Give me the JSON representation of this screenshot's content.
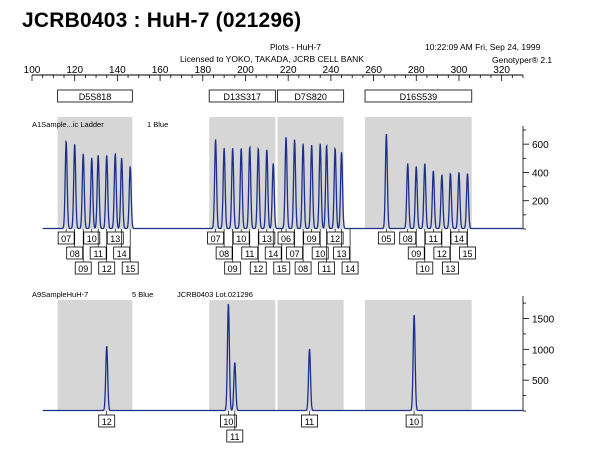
{
  "title": "JCRB0403 : HuH-7 (021296)",
  "header": {
    "plots": "Plots - HuH-7",
    "license": "Licensed to YOKO, TAKADA, JCRB CELL BANK",
    "timestamp": "10:22:09 AM  Fri, Sep 24, 1999",
    "software": "Genotyper® 2.1"
  },
  "chart_data": {
    "type": "line",
    "x_axis": {
      "min": 100,
      "max": 330,
      "ticks": [
        100,
        120,
        140,
        160,
        180,
        200,
        220,
        240,
        260,
        280,
        300,
        320
      ]
    },
    "loci": [
      {
        "name": "D5S818",
        "range": [
          112,
          147
        ]
      },
      {
        "name": "D13S317",
        "range": [
          183,
          214
        ]
      },
      {
        "name": "D7S820",
        "range": [
          215,
          246
        ]
      },
      {
        "name": "D16S539",
        "range": [
          256,
          306
        ]
      }
    ],
    "panels": [
      {
        "label_left": "A1Sample...ic Ladder",
        "label_right": "1 Blue",
        "label_extra": "",
        "y_range": [
          0,
          700
        ],
        "y_ticks": [
          200,
          400,
          600
        ],
        "color": "#1c2f8a",
        "peaks": [
          [
            116,
            620
          ],
          [
            120,
            600
          ],
          [
            124,
            530
          ],
          [
            128,
            500
          ],
          [
            131,
            520
          ],
          [
            135,
            520
          ],
          [
            139,
            530
          ],
          [
            142,
            500
          ],
          [
            146,
            440
          ],
          [
            186,
            630
          ],
          [
            190,
            570
          ],
          [
            194,
            570
          ],
          [
            198,
            570
          ],
          [
            202,
            580
          ],
          [
            206,
            570
          ],
          [
            210,
            560
          ],
          [
            213,
            460
          ],
          [
            219,
            650
          ],
          [
            223,
            630
          ],
          [
            227,
            600
          ],
          [
            231,
            590
          ],
          [
            235,
            600
          ],
          [
            238,
            590
          ],
          [
            242,
            570
          ],
          [
            245,
            540
          ],
          [
            266,
            670
          ],
          [
            276,
            460
          ],
          [
            280,
            440
          ],
          [
            284,
            460
          ],
          [
            288,
            410
          ],
          [
            292,
            380
          ],
          [
            296,
            390
          ],
          [
            300,
            400
          ],
          [
            304,
            390
          ]
        ],
        "alleles": [
          {
            "label": "07",
            "x": 116,
            "row": 0
          },
          {
            "label": "08",
            "x": 120,
            "row": 1
          },
          {
            "label": "09",
            "x": 124,
            "row": 2
          },
          {
            "label": "10",
            "x": 128,
            "row": 0
          },
          {
            "label": "11",
            "x": 131,
            "row": 1
          },
          {
            "label": "12",
            "x": 135,
            "row": 2
          },
          {
            "label": "13",
            "x": 139,
            "row": 0
          },
          {
            "label": "14",
            "x": 142,
            "row": 1
          },
          {
            "label": "15",
            "x": 146,
            "row": 2
          },
          {
            "label": "07",
            "x": 186,
            "row": 0
          },
          {
            "label": "08",
            "x": 190,
            "row": 1
          },
          {
            "label": "09",
            "x": 194,
            "row": 2
          },
          {
            "label": "10",
            "x": 198,
            "row": 0
          },
          {
            "label": "11",
            "x": 202,
            "row": 1
          },
          {
            "label": "12",
            "x": 206,
            "row": 2
          },
          {
            "label": "13",
            "x": 210,
            "row": 0
          },
          {
            "label": "14",
            "x": 213,
            "row": 1
          },
          {
            "label": "15",
            "x": 217,
            "row": 2
          },
          {
            "label": "06",
            "x": 219,
            "row": 0
          },
          {
            "label": "07",
            "x": 223,
            "row": 1
          },
          {
            "label": "08",
            "x": 227,
            "row": 2
          },
          {
            "label": "09",
            "x": 231,
            "row": 0
          },
          {
            "label": "10",
            "x": 235,
            "row": 1
          },
          {
            "label": "11",
            "x": 238,
            "row": 2
          },
          {
            "label": "12",
            "x": 242,
            "row": 0
          },
          {
            "label": "13",
            "x": 245,
            "row": 1
          },
          {
            "label": "14",
            "x": 249,
            "row": 2
          },
          {
            "label": "05",
            "x": 266,
            "row": 0
          },
          {
            "label": "08",
            "x": 276,
            "row": 0
          },
          {
            "label": "09",
            "x": 280,
            "row": 1
          },
          {
            "label": "10",
            "x": 284,
            "row": 2
          },
          {
            "label": "11",
            "x": 288,
            "row": 0
          },
          {
            "label": "12",
            "x": 292,
            "row": 1
          },
          {
            "label": "13",
            "x": 296,
            "row": 2
          },
          {
            "label": "14",
            "x": 300,
            "row": 0
          },
          {
            "label": "15",
            "x": 304,
            "row": 1
          }
        ]
      },
      {
        "label_left": "A9SampleHuH-7",
        "label_right": "5 Blue",
        "label_extra": "JCRB0403 Lot.021296",
        "y_range": [
          0,
          1800
        ],
        "y_ticks": [
          500,
          1000,
          1500
        ],
        "color": "#1c2f8a",
        "peaks": [
          [
            135,
            1050
          ],
          [
            192,
            1740
          ],
          [
            195,
            780
          ],
          [
            230,
            1000
          ],
          [
            279,
            1560
          ]
        ],
        "alleles": [
          {
            "label": "12",
            "x": 135,
            "row": 0
          },
          {
            "label": "10",
            "x": 192,
            "row": 0
          },
          {
            "label": "11",
            "x": 195,
            "row": 1
          },
          {
            "label": "11",
            "x": 230,
            "row": 0
          },
          {
            "label": "10",
            "x": 279,
            "row": 0
          }
        ]
      }
    ]
  }
}
